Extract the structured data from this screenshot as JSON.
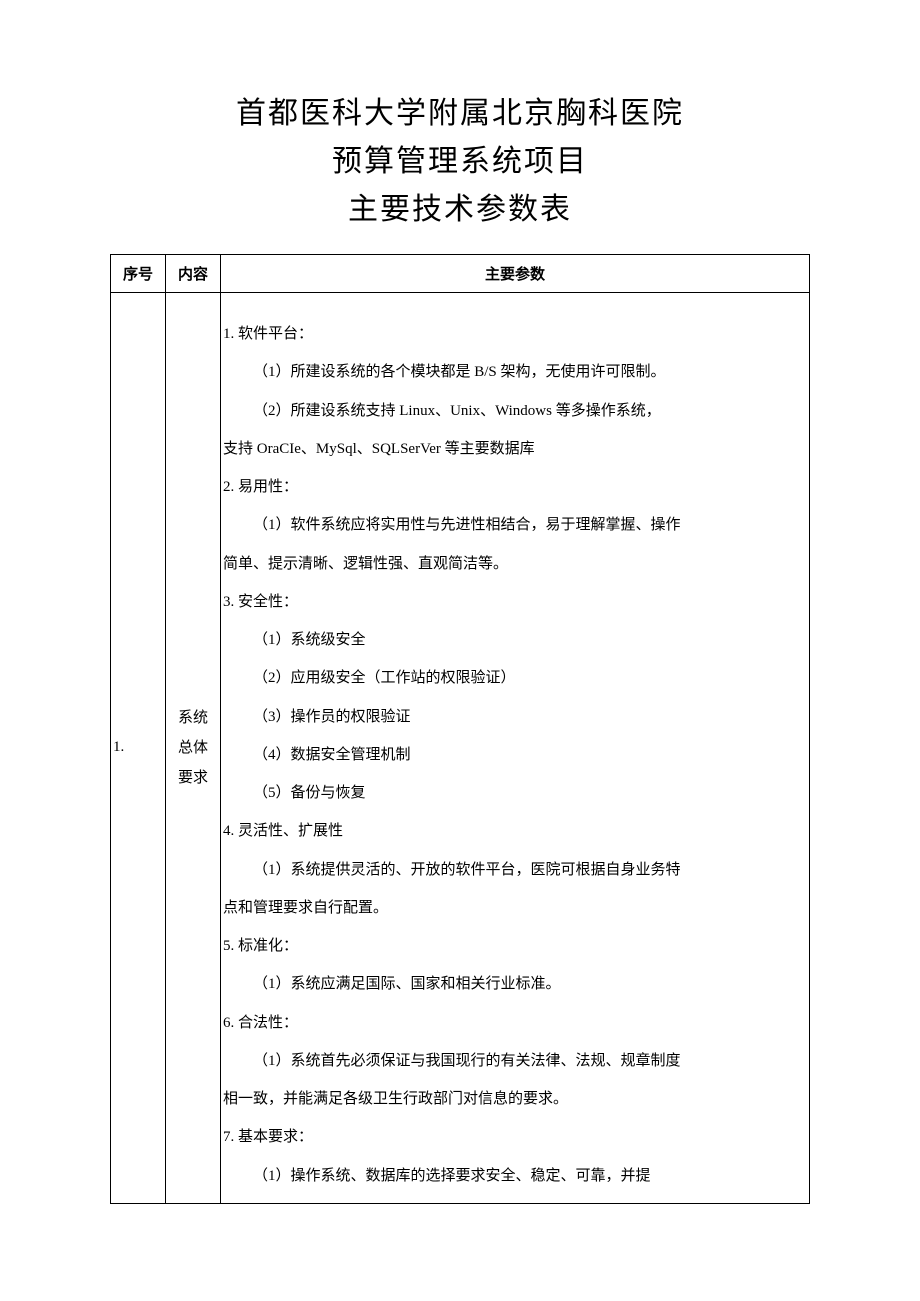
{
  "header": {
    "line1": "首都医科大学附属北京胸科医院",
    "line2": "预算管理系统项目",
    "line3": "主要技术参数表"
  },
  "table": {
    "columns": {
      "col1": "序号",
      "col2": "内容",
      "col3": "主要参数"
    },
    "row1": {
      "idx": "1.",
      "content_l1": "系统",
      "content_l2": "总体",
      "content_l3": "要求",
      "params": [
        {
          "text": "1. 软件平台：",
          "indent": 0
        },
        {
          "text": "（1）所建设系统的各个模块都是 B/S 架构，无使用许可限制。",
          "indent": 1
        },
        {
          "text": "（2）所建设系统支持 Linux、Unix、Windows 等多操作系统，",
          "indent": 1
        },
        {
          "text": "支持 OraCIe、MySql、SQLSerVer 等主要数据库",
          "indent": 0
        },
        {
          "text": "2. 易用性：",
          "indent": 0
        },
        {
          "text": "（1）软件系统应将实用性与先进性相结合，易于理解掌握、操作",
          "indent": 1
        },
        {
          "text": "简单、提示清晰、逻辑性强、直观简洁等。",
          "indent": 0
        },
        {
          "text": "3. 安全性：",
          "indent": 0
        },
        {
          "text": "（1）系统级安全",
          "indent": 1
        },
        {
          "text": "（2）应用级安全（工作站的权限验证）",
          "indent": 1
        },
        {
          "text": "（3）操作员的权限验证",
          "indent": 1
        },
        {
          "text": "（4）数据安全管理机制",
          "indent": 1
        },
        {
          "text": "（5）备份与恢复",
          "indent": 1
        },
        {
          "text": "4. 灵活性、扩展性",
          "indent": 0
        },
        {
          "text": "（1）系统提供灵活的、开放的软件平台，医院可根据自身业务特",
          "indent": 1
        },
        {
          "text": "点和管理要求自行配置。",
          "indent": 0
        },
        {
          "text": "5. 标准化：",
          "indent": 0
        },
        {
          "text": "（1）系统应满足国际、国家和相关行业标准。",
          "indent": 1
        },
        {
          "text": "6. 合法性：",
          "indent": 0
        },
        {
          "text": "（1）系统首先必须保证与我国现行的有关法律、法规、规章制度",
          "indent": 1
        },
        {
          "text": "相一致，并能满足各级卫生行政部门对信息的要求。",
          "indent": 0
        },
        {
          "text": "7. 基本要求：",
          "indent": 0
        },
        {
          "text": "（1）操作系统、数据库的选择要求安全、稳定、可靠，并提",
          "indent": 1
        }
      ]
    }
  }
}
